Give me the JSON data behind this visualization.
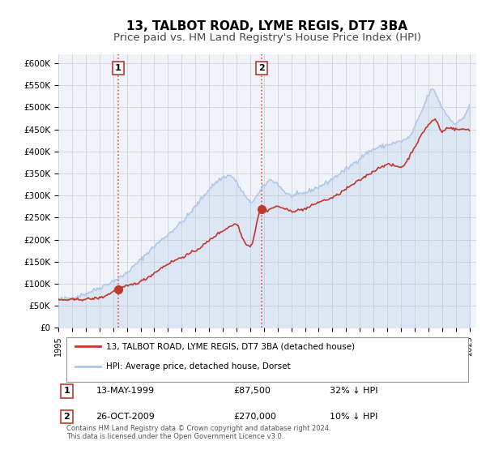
{
  "title": "13, TALBOT ROAD, LYME REGIS, DT7 3BA",
  "subtitle": "Price paid vs. HM Land Registry's House Price Index (HPI)",
  "xlabel": "",
  "ylabel": "",
  "ylim": [
    0,
    620000
  ],
  "yticks": [
    0,
    50000,
    100000,
    150000,
    200000,
    250000,
    300000,
    350000,
    400000,
    450000,
    500000,
    550000,
    600000
  ],
  "ytick_labels": [
    "£0",
    "£50K",
    "£100K",
    "£150K",
    "£200K",
    "£250K",
    "£300K",
    "£350K",
    "£400K",
    "£450K",
    "£500K",
    "£550K",
    "£600K"
  ],
  "xlim_start": 1995.0,
  "xlim_end": 2025.5,
  "xtick_years": [
    1995,
    1996,
    1997,
    1998,
    1999,
    2000,
    2001,
    2002,
    2003,
    2004,
    2005,
    2006,
    2007,
    2008,
    2009,
    2010,
    2011,
    2012,
    2013,
    2014,
    2015,
    2016,
    2017,
    2018,
    2019,
    2020,
    2021,
    2022,
    2023,
    2024,
    2025
  ],
  "hpi_color": "#aec6e8",
  "property_color": "#c0392b",
  "marker_color": "#c0392b",
  "sale1_x": 1999.36,
  "sale1_y": 87500,
  "sale1_label": "1",
  "sale2_x": 2009.82,
  "sale2_y": 270000,
  "sale2_label": "2",
  "vline1_x": 1999.36,
  "vline2_x": 2009.82,
  "vline_color": "#e74c3c",
  "vline_style": ":",
  "legend_property": "13, TALBOT ROAD, LYME REGIS, DT7 3BA (detached house)",
  "legend_hpi": "HPI: Average price, detached house, Dorset",
  "annotation1_num": "1",
  "annotation1_date": "13-MAY-1999",
  "annotation1_price": "£87,500",
  "annotation1_hpi": "32% ↓ HPI",
  "annotation2_num": "2",
  "annotation2_date": "26-OCT-2009",
  "annotation2_price": "£270,000",
  "annotation2_hpi": "10% ↓ HPI",
  "footer": "Contains HM Land Registry data © Crown copyright and database right 2024.\nThis data is licensed under the Open Government Licence v3.0.",
  "bg_color": "#f0f4fa",
  "plot_bg_color": "#ffffff",
  "grid_color": "#cccccc",
  "title_fontsize": 11,
  "subtitle_fontsize": 9.5
}
